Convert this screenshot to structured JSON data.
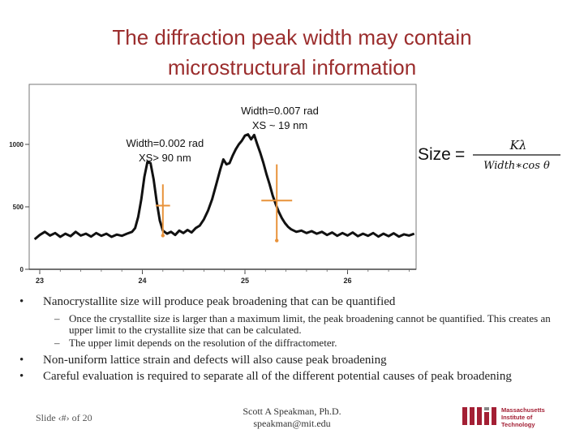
{
  "title": {
    "line1": "The diffraction peak width may contain",
    "line2": "microstructural information"
  },
  "chart_data": {
    "type": "line",
    "x_ticks": [
      23,
      24,
      25,
      26
    ],
    "y_ticks": [
      0,
      500,
      1000
    ],
    "xlim": [
      22.95,
      26.65
    ],
    "ylim": [
      0,
      1170
    ],
    "series": [
      {
        "values": [
          [
            22.95,
            240
          ],
          [
            23.0,
            275
          ],
          [
            23.05,
            300
          ],
          [
            23.1,
            270
          ],
          [
            23.15,
            290
          ],
          [
            23.2,
            260
          ],
          [
            23.25,
            285
          ],
          [
            23.3,
            265
          ],
          [
            23.35,
            300
          ],
          [
            23.4,
            270
          ],
          [
            23.45,
            285
          ],
          [
            23.5,
            262
          ],
          [
            23.55,
            290
          ],
          [
            23.6,
            268
          ],
          [
            23.65,
            285
          ],
          [
            23.7,
            260
          ],
          [
            23.75,
            278
          ],
          [
            23.8,
            268
          ],
          [
            23.85,
            285
          ],
          [
            23.9,
            300
          ],
          [
            23.93,
            330
          ],
          [
            23.96,
            420
          ],
          [
            23.99,
            560
          ],
          [
            24.02,
            740
          ],
          [
            24.05,
            860
          ],
          [
            24.08,
            850
          ],
          [
            24.11,
            720
          ],
          [
            24.14,
            540
          ],
          [
            24.17,
            390
          ],
          [
            24.2,
            310
          ],
          [
            24.24,
            285
          ],
          [
            24.28,
            300
          ],
          [
            24.32,
            275
          ],
          [
            24.36,
            310
          ],
          [
            24.4,
            290
          ],
          [
            24.44,
            315
          ],
          [
            24.48,
            295
          ],
          [
            24.52,
            330
          ],
          [
            24.56,
            350
          ],
          [
            24.6,
            400
          ],
          [
            24.64,
            470
          ],
          [
            24.68,
            560
          ],
          [
            24.72,
            680
          ],
          [
            24.76,
            800
          ],
          [
            24.79,
            880
          ],
          [
            24.82,
            840
          ],
          [
            24.85,
            850
          ],
          [
            24.88,
            910
          ],
          [
            24.91,
            960
          ],
          [
            24.94,
            1000
          ],
          [
            24.97,
            1030
          ],
          [
            25.0,
            1070
          ],
          [
            25.03,
            1080
          ],
          [
            25.06,
            1040
          ],
          [
            25.09,
            1075
          ],
          [
            25.12,
            1000
          ],
          [
            25.15,
            930
          ],
          [
            25.18,
            850
          ],
          [
            25.21,
            760
          ],
          [
            25.24,
            680
          ],
          [
            25.27,
            590
          ],
          [
            25.3,
            520
          ],
          [
            25.33,
            460
          ],
          [
            25.36,
            410
          ],
          [
            25.39,
            370
          ],
          [
            25.42,
            340
          ],
          [
            25.45,
            320
          ],
          [
            25.5,
            300
          ],
          [
            25.55,
            310
          ],
          [
            25.6,
            290
          ],
          [
            25.65,
            305
          ],
          [
            25.7,
            285
          ],
          [
            25.75,
            300
          ],
          [
            25.8,
            275
          ],
          [
            25.85,
            295
          ],
          [
            25.9,
            268
          ],
          [
            25.95,
            290
          ],
          [
            26.0,
            270
          ],
          [
            26.05,
            295
          ],
          [
            26.1,
            265
          ],
          [
            26.15,
            285
          ],
          [
            26.2,
            268
          ],
          [
            26.25,
            290
          ],
          [
            26.3,
            262
          ],
          [
            26.35,
            285
          ],
          [
            26.4,
            265
          ],
          [
            26.45,
            288
          ],
          [
            26.5,
            262
          ],
          [
            26.55,
            280
          ],
          [
            26.6,
            270
          ],
          [
            26.65,
            285
          ]
        ]
      }
    ],
    "annotations": [
      {
        "line1": "Width=0.002 rad",
        "line2": "XS> 90 nm",
        "x": 24.22,
        "y": 980
      },
      {
        "line1": "Width=0.007 rad",
        "line2": "XS ~ 19 nm",
        "x": 25.34,
        "y": 1240
      }
    ],
    "markers": [
      {
        "x": 24.2,
        "y_top": 680,
        "y_bottom": 270,
        "half_width": 0.07,
        "half_max": 510
      },
      {
        "x": 25.31,
        "y_top": 840,
        "y_bottom": 230,
        "half_width": 0.15,
        "half_max": 550
      }
    ],
    "marker_color": "#e8923a"
  },
  "formula": {
    "lhs": "Size",
    "equals": "=",
    "numerator": "Kλ",
    "denominator": "Width∗cos θ"
  },
  "bullets": {
    "b1": "Nanocrystallite size will produce peak broadening that can be quantified",
    "sub1": "Once the crystallite size is larger than a maximum limit, the peak broadening cannot be quantified. This creates an upper limit to the crystallite size that can be calculated.",
    "sub2": "The upper limit depends on the resolution of the diffractometer.",
    "b2": "Non-uniform lattice strain and defects will also cause peak broadening",
    "b3": "Careful evaluation is required to separate all of the different potential causes of peak broadening",
    "bullet_glyph": "•",
    "dash_glyph": "–"
  },
  "footer": {
    "slide": "Slide ‹#› of 20",
    "author": "Scott A Speakman, Ph.D.",
    "email": "speakman@mit.edu"
  },
  "logo": {
    "line1": "Massachusetts",
    "line2": "Institute of",
    "line3": "Technology",
    "color": "#a31f34"
  }
}
